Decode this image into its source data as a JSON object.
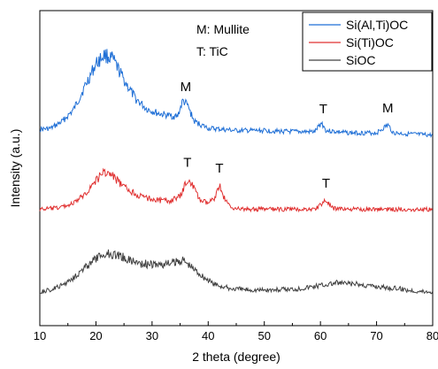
{
  "chart_data": {
    "type": "line",
    "title": "",
    "xlabel": "2 theta (degree)",
    "ylabel": "Intensity (a.u.)",
    "xlim": [
      10,
      80
    ],
    "xticks": [
      10,
      20,
      30,
      40,
      50,
      60,
      70,
      80
    ],
    "grid": false,
    "legend_position": "top-right",
    "phase_key": [
      "M: Mullite",
      "T: TiC"
    ],
    "series": [
      {
        "name": "Si(Al,Ti)OC",
        "color": "#1f6fd6",
        "points": [
          [
            10,
            0.9
          ],
          [
            12,
            1.0
          ],
          [
            14,
            1.6
          ],
          [
            16,
            2.6
          ],
          [
            18,
            4.6
          ],
          [
            20,
            6.6
          ],
          [
            21.5,
            7.4
          ],
          [
            23,
            7.0
          ],
          [
            25,
            5.2
          ],
          [
            27,
            3.6
          ],
          [
            29,
            2.7
          ],
          [
            31,
            2.3
          ],
          [
            33,
            2.1
          ],
          [
            34.5,
            2.0
          ],
          [
            35.5,
            3.4
          ],
          [
            36.3,
            3.0
          ],
          [
            37.5,
            1.6
          ],
          [
            40,
            1.0
          ],
          [
            45,
            0.8
          ],
          [
            50,
            0.8
          ],
          [
            55,
            0.7
          ],
          [
            59,
            0.7
          ],
          [
            60.2,
            1.5
          ],
          [
            61,
            0.8
          ],
          [
            65,
            0.6
          ],
          [
            70,
            0.6
          ],
          [
            72,
            1.3
          ],
          [
            73,
            0.6
          ],
          [
            76,
            0.5
          ],
          [
            80,
            0.4
          ]
        ]
      },
      {
        "name": "Si(Ti)OC",
        "color": "#e03030",
        "points": [
          [
            10,
            0.5
          ],
          [
            13,
            0.6
          ],
          [
            16,
            1.0
          ],
          [
            18,
            1.8
          ],
          [
            20,
            3.0
          ],
          [
            21.5,
            3.8
          ],
          [
            23,
            3.4
          ],
          [
            25,
            2.4
          ],
          [
            28,
            1.6
          ],
          [
            31,
            1.3
          ],
          [
            33,
            1.2
          ],
          [
            35,
            1.6
          ],
          [
            36.3,
            3.1
          ],
          [
            37.2,
            2.6
          ],
          [
            38.5,
            1.3
          ],
          [
            40,
            1.0
          ],
          [
            41,
            1.4
          ],
          [
            42,
            2.6
          ],
          [
            43,
            1.3
          ],
          [
            44,
            0.7
          ],
          [
            46,
            0.5
          ],
          [
            50,
            0.5
          ],
          [
            55,
            0.5
          ],
          [
            59,
            0.5
          ],
          [
            61,
            1.3
          ],
          [
            62,
            0.6
          ],
          [
            65,
            0.5
          ],
          [
            70,
            0.5
          ],
          [
            75,
            0.5
          ],
          [
            80,
            0.5
          ]
        ]
      },
      {
        "name": "SiOC",
        "color": "#404040",
        "points": [
          [
            10,
            0.6
          ],
          [
            12,
            0.8
          ],
          [
            14,
            1.2
          ],
          [
            16,
            1.9
          ],
          [
            18,
            2.7
          ],
          [
            20,
            3.5
          ],
          [
            22,
            4.0
          ],
          [
            24,
            3.8
          ],
          [
            26,
            3.4
          ],
          [
            28,
            3.1
          ],
          [
            30,
            3.0
          ],
          [
            32,
            3.0
          ],
          [
            34,
            3.2
          ],
          [
            35.5,
            3.4
          ],
          [
            37,
            2.8
          ],
          [
            39,
            2.0
          ],
          [
            41,
            1.3
          ],
          [
            44,
            0.9
          ],
          [
            48,
            0.8
          ],
          [
            52,
            0.8
          ],
          [
            56,
            0.9
          ],
          [
            60,
            1.2
          ],
          [
            63,
            1.4
          ],
          [
            66,
            1.3
          ],
          [
            70,
            1.1
          ],
          [
            74,
            0.9
          ],
          [
            77,
            0.7
          ],
          [
            80,
            0.6
          ]
        ]
      }
    ],
    "annotations": [
      {
        "text": "M",
        "x": 36.0,
        "series": "Si(Al,Ti)OC"
      },
      {
        "text": "T",
        "x": 60.5,
        "series": "Si(Al,Ti)OC"
      },
      {
        "text": "M",
        "x": 72.0,
        "series": "Si(Al,Ti)OC"
      },
      {
        "text": "T",
        "x": 36.3,
        "series": "Si(Ti)OC"
      },
      {
        "text": "T",
        "x": 42.0,
        "series": "Si(Ti)OC"
      },
      {
        "text": "T",
        "x": 61.0,
        "series": "Si(Ti)OC"
      }
    ]
  }
}
